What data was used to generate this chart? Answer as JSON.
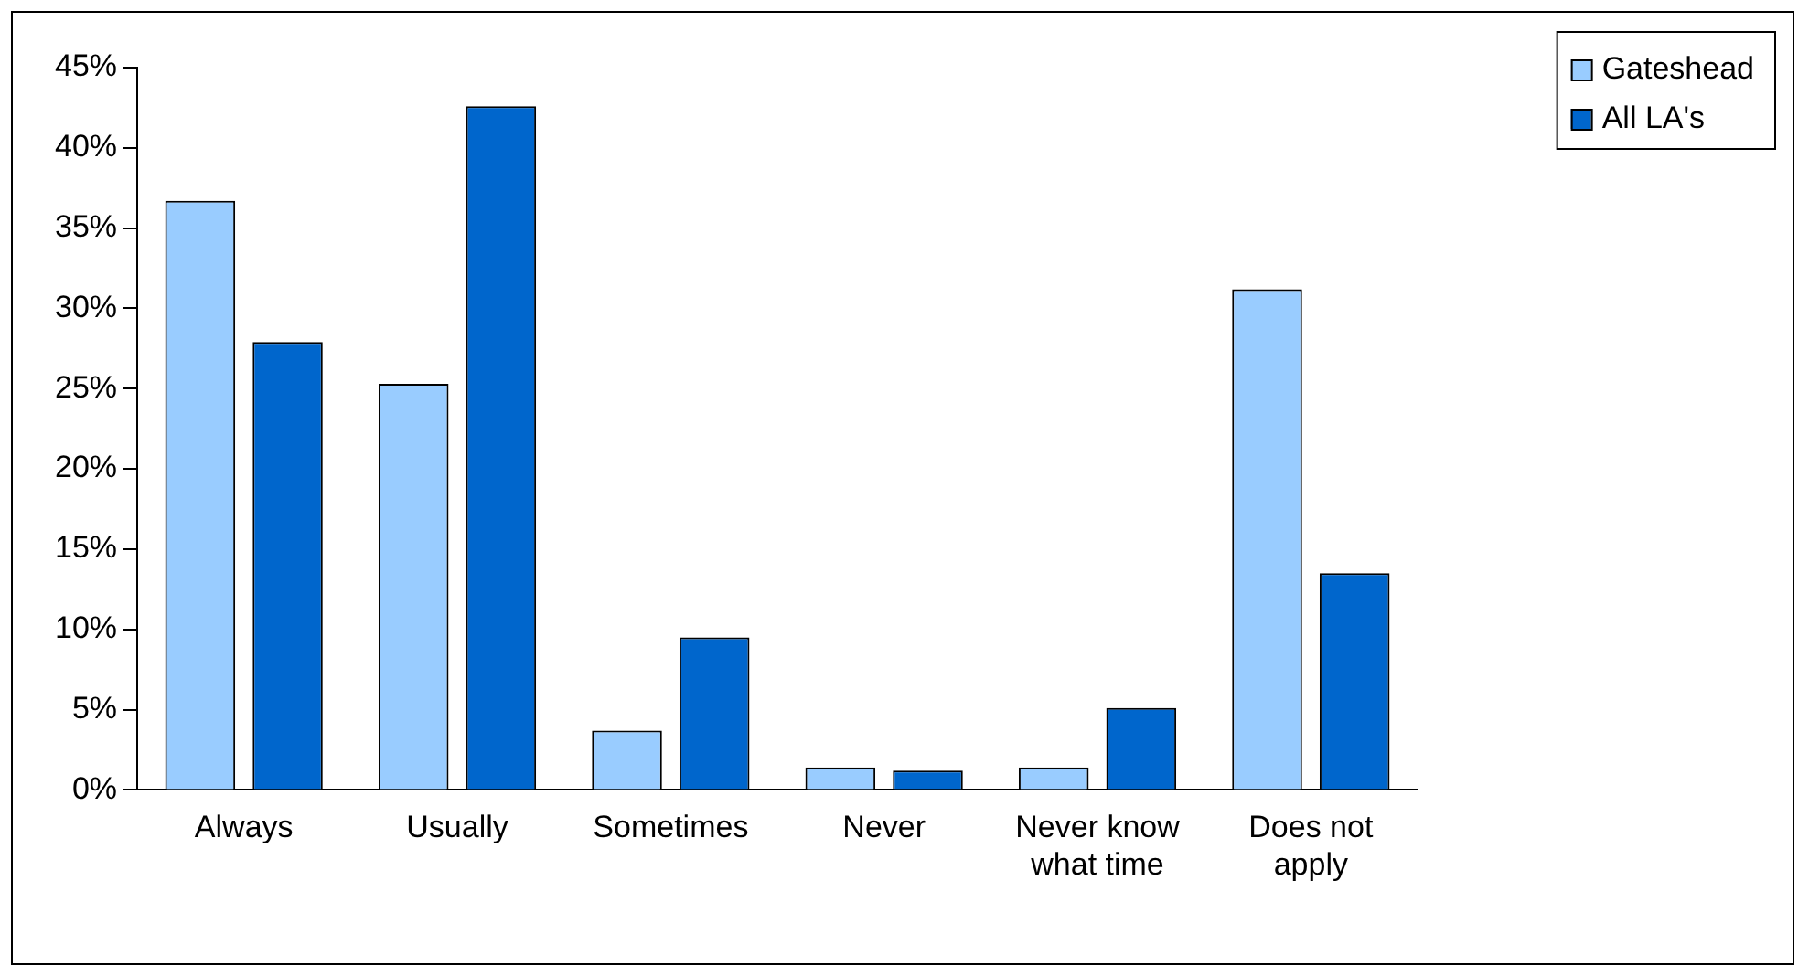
{
  "chart_data": {
    "type": "bar",
    "categories": [
      "Always",
      "Usually",
      "Sometimes",
      "Never",
      "Never know what time",
      "Does not apply"
    ],
    "series": [
      {
        "name": "Gateshead",
        "color": "#99ccff",
        "values": [
          36.7,
          25.3,
          3.7,
          1.4,
          1.4,
          31.2
        ]
      },
      {
        "name": "All LA's",
        "color": "#0066cc",
        "values": [
          27.9,
          42.6,
          9.5,
          1.2,
          5.1,
          13.5
        ]
      }
    ],
    "ylim": [
      0,
      45
    ],
    "yticks": [
      {
        "value": 0,
        "label": "0%"
      },
      {
        "value": 5,
        "label": "5%"
      },
      {
        "value": 10,
        "label": "10%"
      },
      {
        "value": 15,
        "label": "15%"
      },
      {
        "value": 20,
        "label": "20%"
      },
      {
        "value": 25,
        "label": "25%"
      },
      {
        "value": 30,
        "label": "30%"
      },
      {
        "value": 35,
        "label": "35%"
      },
      {
        "value": 40,
        "label": "40%"
      },
      {
        "value": 45,
        "label": "45%"
      }
    ],
    "grid": false,
    "legend": "top right"
  }
}
